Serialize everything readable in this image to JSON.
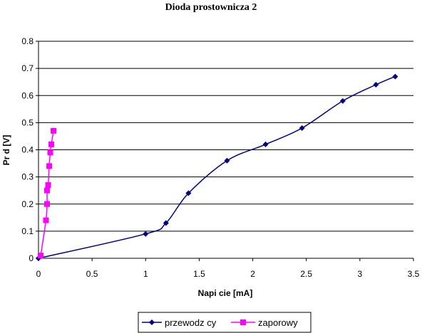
{
  "chart_data": {
    "type": "line",
    "title": "Dioda prostownicza 2",
    "xlabel": "Napi cie [mA]",
    "ylabel": "Pr d [V]",
    "xlim": [
      0,
      3.5
    ],
    "ylim": [
      0,
      0.8
    ],
    "x_ticks": [
      "0",
      "0.5",
      "1",
      "1.5",
      "2",
      "2.5",
      "3",
      "3.5"
    ],
    "y_ticks": [
      "0",
      "0.1",
      "0.2",
      "0.3",
      "0.4",
      "0.5",
      "0.6",
      "0.7",
      "0.8"
    ],
    "grid": "horizontal",
    "legend_position": "bottom",
    "series": [
      {
        "name": "przewodz cy",
        "color": "#000080",
        "marker": "diamond",
        "points": [
          [
            0.0,
            0.0
          ],
          [
            1.0,
            0.09
          ],
          [
            1.19,
            0.13
          ],
          [
            1.4,
            0.24
          ],
          [
            1.76,
            0.36
          ],
          [
            2.12,
            0.42
          ],
          [
            2.46,
            0.48
          ],
          [
            2.84,
            0.58
          ],
          [
            3.15,
            0.64
          ],
          [
            3.33,
            0.67
          ]
        ]
      },
      {
        "name": "zaporowy",
        "color": "#ff00ff",
        "marker": "square",
        "points": [
          [
            0.02,
            0.01
          ],
          [
            0.07,
            0.14
          ],
          [
            0.08,
            0.2
          ],
          [
            0.08,
            0.25
          ],
          [
            0.09,
            0.27
          ],
          [
            0.1,
            0.34
          ],
          [
            0.11,
            0.39
          ],
          [
            0.12,
            0.42
          ],
          [
            0.14,
            0.47
          ]
        ]
      }
    ]
  }
}
